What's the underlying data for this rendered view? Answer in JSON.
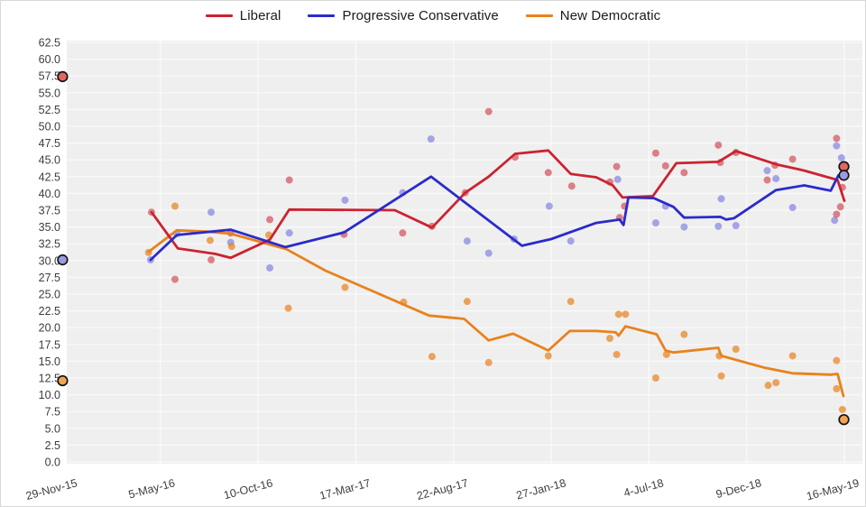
{
  "page": {
    "background": "#ffffff",
    "border_color": "#d8d8d8"
  },
  "legend": {
    "items": [
      {
        "label": "Liberal",
        "color": "#cb2331"
      },
      {
        "label": "Progressive Conservative",
        "color": "#2b2bcb"
      },
      {
        "label": "New Democratic",
        "color": "#e8821d"
      }
    ]
  },
  "chart_data": {
    "type": "line",
    "title": "",
    "xlabel": "",
    "ylabel": "",
    "plot_background": "#efefef",
    "grid_color": "#fafafa",
    "axis_text_color": "#3d3d3d",
    "y_axis": {
      "min": 0,
      "max": 62.5,
      "step": 2.5,
      "tick_labels": [
        "0.0",
        "2.5",
        "5.0",
        "7.5",
        "10.0",
        "12.5",
        "15.0",
        "17.5",
        "20.0",
        "22.5",
        "25.0",
        "27.5",
        "30.0",
        "32.5",
        "35.0",
        "37.5",
        "40.0",
        "42.5",
        "45.0",
        "47.5",
        "50.0",
        "52.5",
        "55.0",
        "57.5",
        "60.0",
        "62.5"
      ]
    },
    "x_axis": {
      "tick_labels": [
        "29-Nov-15",
        "5-May-16",
        "10-Oct-16",
        "17-Mar-17",
        "22-Aug-17",
        "27-Jan-18",
        "4-Jul-18",
        "9-Dec-18",
        "16-May-19"
      ]
    },
    "series": [
      {
        "name": "Liberal",
        "line_color": "#cb2331",
        "point_color": "#cb2331",
        "point_opacity": 0.55,
        "marker_fill": "#e4675f",
        "trend": [
          [
            0.91,
            37.2
          ],
          [
            1.18,
            31.8
          ],
          [
            1.56,
            31.0
          ],
          [
            1.72,
            30.4
          ],
          [
            2.12,
            33.1
          ],
          [
            2.32,
            37.6
          ],
          [
            3.4,
            37.5
          ],
          [
            3.78,
            34.9
          ],
          [
            4.12,
            40.1
          ],
          [
            4.36,
            42.5
          ],
          [
            4.63,
            45.9
          ],
          [
            4.97,
            46.4
          ],
          [
            5.2,
            42.9
          ],
          [
            5.46,
            42.4
          ],
          [
            5.63,
            41.2
          ],
          [
            5.73,
            39.4
          ],
          [
            6.04,
            39.6
          ],
          [
            6.28,
            44.5
          ],
          [
            6.71,
            44.7
          ],
          [
            6.89,
            46.3
          ],
          [
            7.31,
            44.3
          ],
          [
            7.59,
            43.4
          ],
          [
            7.93,
            42.0
          ],
          [
            8.0,
            38.9
          ]
        ],
        "polls": [
          [
            0.91,
            37.2
          ],
          [
            1.15,
            27.2
          ],
          [
            1.52,
            30.1
          ],
          [
            1.72,
            34.1
          ],
          [
            2.12,
            36.1
          ],
          [
            2.32,
            42.0
          ],
          [
            2.88,
            33.9
          ],
          [
            3.48,
            34.1
          ],
          [
            3.78,
            35.1
          ],
          [
            4.12,
            40.1
          ],
          [
            4.36,
            52.2
          ],
          [
            4.63,
            45.4
          ],
          [
            4.97,
            43.1
          ],
          [
            5.21,
            41.1
          ],
          [
            5.6,
            41.7
          ],
          [
            5.67,
            44.0
          ],
          [
            5.7,
            36.4
          ],
          [
            5.75,
            38.1
          ],
          [
            6.07,
            46.0
          ],
          [
            6.17,
            44.1
          ],
          [
            6.36,
            43.1
          ],
          [
            6.71,
            47.2
          ],
          [
            6.73,
            44.6
          ],
          [
            6.89,
            46.1
          ],
          [
            7.21,
            42.0
          ],
          [
            7.29,
            44.2
          ],
          [
            7.47,
            45.1
          ],
          [
            7.92,
            48.2
          ],
          [
            7.92,
            36.9
          ],
          [
            7.96,
            38.0
          ],
          [
            7.98,
            40.9
          ]
        ],
        "election_markers": [
          [
            0,
            57.4
          ],
          [
            7.995,
            44.0
          ]
        ]
      },
      {
        "name": "Progressive Conservative",
        "line_color": "#2b2bcb",
        "point_color": "#3a3ad6",
        "point_opacity": 0.42,
        "marker_fill": "#9b9be4",
        "trend": [
          [
            0.9,
            30.1
          ],
          [
            1.17,
            33.8
          ],
          [
            1.72,
            34.6
          ],
          [
            2.28,
            32.0
          ],
          [
            2.88,
            34.2
          ],
          [
            3.77,
            42.5
          ],
          [
            4.7,
            32.2
          ],
          [
            5.0,
            33.2
          ],
          [
            5.46,
            35.6
          ],
          [
            5.7,
            36.1
          ],
          [
            5.74,
            35.3
          ],
          [
            5.79,
            39.4
          ],
          [
            6.05,
            39.3
          ],
          [
            6.25,
            38.0
          ],
          [
            6.36,
            36.4
          ],
          [
            6.73,
            36.5
          ],
          [
            6.79,
            36.1
          ],
          [
            6.87,
            36.3
          ],
          [
            7.3,
            40.5
          ],
          [
            7.59,
            41.2
          ],
          [
            7.86,
            40.4
          ],
          [
            7.94,
            42.7
          ]
        ],
        "polls": [
          [
            0.9,
            30.1
          ],
          [
            1.17,
            34.0
          ],
          [
            1.52,
            37.2
          ],
          [
            1.72,
            32.7
          ],
          [
            2.12,
            28.9
          ],
          [
            2.32,
            34.1
          ],
          [
            2.89,
            39.0
          ],
          [
            3.48,
            40.1
          ],
          [
            3.77,
            48.1
          ],
          [
            4.14,
            32.9
          ],
          [
            4.36,
            31.1
          ],
          [
            4.62,
            33.2
          ],
          [
            4.98,
            38.1
          ],
          [
            5.2,
            32.9
          ],
          [
            5.68,
            42.1
          ],
          [
            6.07,
            35.6
          ],
          [
            6.17,
            38.1
          ],
          [
            6.36,
            35.0
          ],
          [
            6.71,
            35.1
          ],
          [
            6.74,
            39.2
          ],
          [
            6.89,
            35.2
          ],
          [
            7.21,
            43.4
          ],
          [
            7.3,
            42.2
          ],
          [
            7.47,
            37.9
          ],
          [
            7.9,
            36.0
          ],
          [
            7.92,
            47.1
          ],
          [
            7.97,
            45.3
          ]
        ],
        "election_markers": [
          [
            0,
            30.1
          ],
          [
            7.995,
            42.7
          ]
        ]
      },
      {
        "name": "New Democratic",
        "line_color": "#e8821d",
        "point_color": "#e8821d",
        "point_opacity": 0.7,
        "marker_fill": "#f2a452",
        "trend": [
          [
            0.88,
            31.3
          ],
          [
            1.17,
            34.5
          ],
          [
            1.49,
            34.3
          ],
          [
            1.72,
            34.0
          ],
          [
            2.29,
            31.7
          ],
          [
            2.69,
            28.5
          ],
          [
            3.75,
            21.8
          ],
          [
            4.11,
            21.3
          ],
          [
            4.36,
            18.1
          ],
          [
            4.61,
            19.1
          ],
          [
            4.97,
            16.6
          ],
          [
            5.19,
            19.5
          ],
          [
            5.46,
            19.5
          ],
          [
            5.66,
            19.3
          ],
          [
            5.69,
            18.8
          ],
          [
            5.76,
            20.2
          ],
          [
            6.08,
            19.0
          ],
          [
            6.17,
            16.6
          ],
          [
            6.25,
            16.3
          ],
          [
            6.71,
            17.0
          ],
          [
            6.74,
            15.8
          ],
          [
            7.19,
            14.0
          ],
          [
            7.47,
            13.2
          ],
          [
            7.86,
            13.0
          ],
          [
            7.93,
            13.1
          ],
          [
            7.99,
            9.8
          ]
        ],
        "polls": [
          [
            0.88,
            31.2
          ],
          [
            1.15,
            38.1
          ],
          [
            1.51,
            33.0
          ],
          [
            1.73,
            32.1
          ],
          [
            2.11,
            33.8
          ],
          [
            2.31,
            22.9
          ],
          [
            2.89,
            26.0
          ],
          [
            3.49,
            23.8
          ],
          [
            3.78,
            15.7
          ],
          [
            4.14,
            23.9
          ],
          [
            4.36,
            14.8
          ],
          [
            4.97,
            15.8
          ],
          [
            5.2,
            23.9
          ],
          [
            5.6,
            18.4
          ],
          [
            5.67,
            16.0
          ],
          [
            5.69,
            22.0
          ],
          [
            5.76,
            22.0
          ],
          [
            6.07,
            12.5
          ],
          [
            6.18,
            16.0
          ],
          [
            6.36,
            19.0
          ],
          [
            6.72,
            15.8
          ],
          [
            6.74,
            12.8
          ],
          [
            6.89,
            16.8
          ],
          [
            7.22,
            11.4
          ],
          [
            7.3,
            11.8
          ],
          [
            7.47,
            15.8
          ],
          [
            7.92,
            15.1
          ],
          [
            7.92,
            10.9
          ],
          [
            7.98,
            7.8
          ]
        ],
        "election_markers": [
          [
            0,
            12.1
          ],
          [
            7.995,
            6.3
          ]
        ]
      }
    ]
  }
}
